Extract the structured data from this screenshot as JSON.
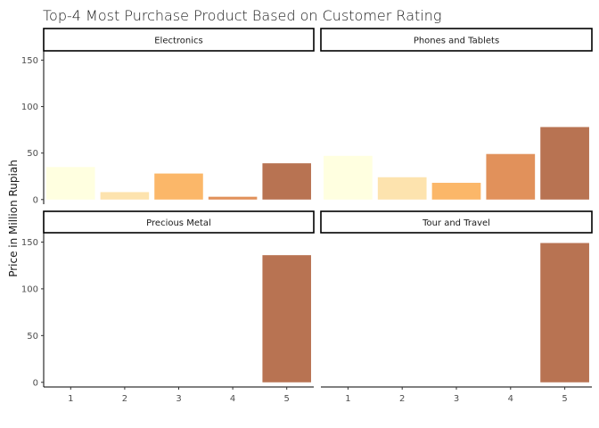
{
  "chart_data": {
    "type": "bar",
    "title": "Top-4 Most Purchase Product Based on Customer Rating",
    "xlabel": "",
    "ylabel": "Price in Million Rupiah",
    "categories": [
      "1",
      "2",
      "3",
      "4",
      "5"
    ],
    "ylim": [
      -5,
      160
    ],
    "yticks": [
      0,
      50,
      100,
      150
    ],
    "grid": false,
    "legend": "none",
    "fill_colors": [
      "#ffffe0",
      "#fde3ae",
      "#fbb769",
      "#e1915b",
      "#b87352"
    ],
    "panels": [
      {
        "name": "Electronics",
        "values": [
          35,
          8,
          28,
          3,
          39
        ]
      },
      {
        "name": "Phones and Tablets",
        "values": [
          47,
          24,
          18,
          49,
          78
        ]
      },
      {
        "name": "Precious Metal",
        "values": [
          0,
          0,
          0,
          0,
          136
        ]
      },
      {
        "name": "Tour and Travel",
        "values": [
          0,
          0,
          0,
          0,
          149
        ]
      }
    ]
  }
}
